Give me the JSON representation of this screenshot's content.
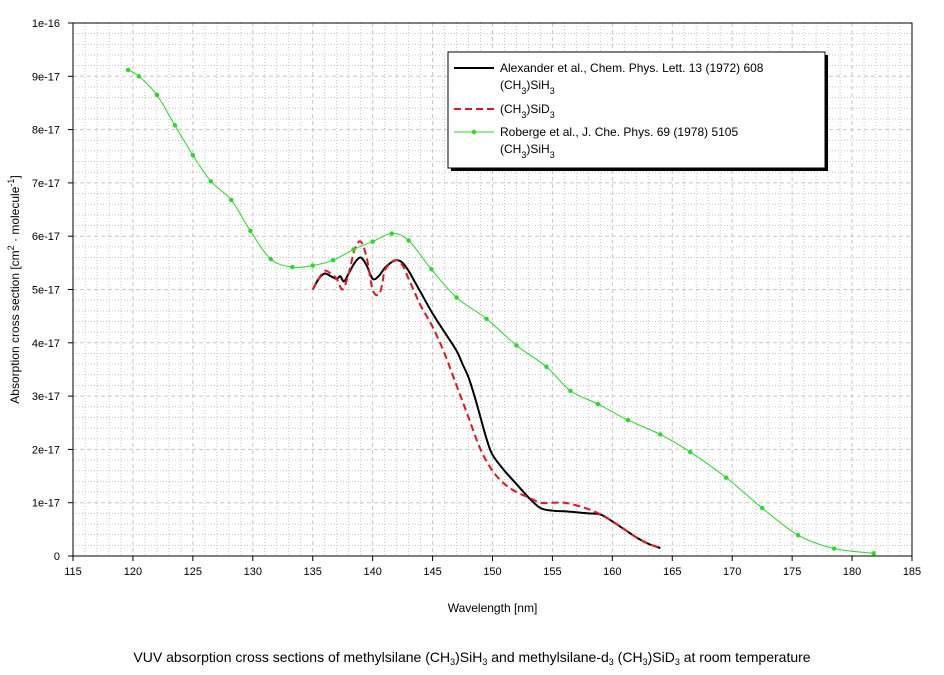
{
  "chart_data": {
    "type": "line",
    "xlabel": "Wavelength [nm]",
    "ylabel_parts": [
      "Absorption cross section [cm",
      "2",
      " · molecule",
      "-1",
      "]"
    ],
    "xlim": [
      115,
      185
    ],
    "ylim": [
      0,
      1e-16
    ],
    "x_ticks": [
      "115",
      "120",
      "125",
      "130",
      "135",
      "140",
      "145",
      "150",
      "155",
      "160",
      "165",
      "170",
      "175",
      "180",
      "185"
    ],
    "y_ticks": [
      "0",
      "1e-17",
      "2e-17",
      "3e-17",
      "4e-17",
      "5e-17",
      "6e-17",
      "7e-17",
      "8e-17",
      "9e-17",
      "1e-16"
    ],
    "grid": true,
    "legend_position": "top-right",
    "series": [
      {
        "legend_parts": [
          [
            "Alexander et al., Chem. Phys. Lett. 13 (1972) 608"
          ],
          [
            "(CH",
            "3",
            ")SiH",
            "3"
          ]
        ],
        "color": "#000000",
        "style": "solid",
        "markers": false,
        "x": [
          135.0,
          135.5,
          136.0,
          136.5,
          137.0,
          137.3,
          137.6,
          138.0,
          138.5,
          139.0,
          139.5,
          140.0,
          140.5,
          141.0,
          141.5,
          142.0,
          142.5,
          143.0,
          143.5,
          144.0,
          145.0,
          146.0,
          147.0,
          147.5,
          148.0,
          148.5,
          149.0,
          149.5,
          150.0,
          151.0,
          152.0,
          153.0,
          154.0,
          155.0,
          156.0,
          157.0,
          158.0,
          159.0,
          160.0,
          161.0,
          162.0,
          163.0,
          164.0
        ],
        "y": [
          5e-17,
          5.2e-17,
          5.3e-17,
          5.25e-17,
          5.2e-17,
          5.25e-17,
          5.15e-17,
          5.3e-17,
          5.5e-17,
          5.6e-17,
          5.45e-17,
          5.2e-17,
          5.25e-17,
          5.4e-17,
          5.5e-17,
          5.55e-17,
          5.5e-17,
          5.35e-17,
          5.15e-17,
          4.95e-17,
          4.55e-17,
          4.2e-17,
          3.85e-17,
          3.6e-17,
          3.35e-17,
          3e-17,
          2.6e-17,
          2.2e-17,
          1.9e-17,
          1.6e-17,
          1.35e-17,
          1.1e-17,
          9e-18,
          8.5e-18,
          8.4e-18,
          8.2e-18,
          8e-18,
          7.8e-18,
          6.5e-18,
          5e-18,
          3.5e-18,
          2.3e-18,
          1.5e-18
        ]
      },
      {
        "legend_parts": [
          [
            "(CH",
            "3",
            ")SiD",
            "3"
          ]
        ],
        "color": "#e8141c",
        "style": "dashed",
        "markers": false,
        "x": [
          135.0,
          135.5,
          136.0,
          136.5,
          137.0,
          137.5,
          138.0,
          138.5,
          139.0,
          139.5,
          140.0,
          140.5,
          140.8,
          141.0,
          141.5,
          142.0,
          142.5,
          143.0,
          143.5,
          144.0,
          145.0,
          146.0,
          147.0,
          148.0,
          149.0,
          150.0,
          151.0,
          152.0,
          153.0,
          154.0,
          155.0,
          156.0,
          157.0,
          158.0,
          159.0,
          160.0,
          161.0,
          162.0,
          163.0,
          164.0
        ],
        "y": [
          5e-17,
          5.2e-17,
          5.35e-17,
          5.3e-17,
          5.2e-17,
          5e-17,
          5.3e-17,
          5.75e-17,
          5.9e-17,
          5.6e-17,
          5e-17,
          4.9e-17,
          5.1e-17,
          5.35e-17,
          5.5e-17,
          5.55e-17,
          5.45e-17,
          5.2e-17,
          4.95e-17,
          4.7e-17,
          4.3e-17,
          3.8e-17,
          3.2e-17,
          2.6e-17,
          2e-17,
          1.6e-17,
          1.35e-17,
          1.2e-17,
          1.1e-17,
          1e-17,
          1e-17,
          1e-17,
          9.5e-18,
          8.8e-18,
          7.8e-18,
          6.5e-18,
          5e-18,
          3.5e-18,
          2.3e-18,
          1.5e-18
        ]
      },
      {
        "legend_parts": [
          [
            "Roberge et al., J. Che. Phys. 69 (1978) 5105"
          ],
          [
            "(CH",
            "3",
            ")SiH",
            "3"
          ]
        ],
        "color": "#22dd22",
        "style": "solid",
        "markers": true,
        "x": [
          119.6,
          120.5,
          122.0,
          123.5,
          125.0,
          126.5,
          128.2,
          129.8,
          131.5,
          133.3,
          135.0,
          136.7,
          138.4,
          140.0,
          141.6,
          143.0,
          144.9,
          147.0,
          149.5,
          152.0,
          154.5,
          156.5,
          158.8,
          161.3,
          164.0,
          166.5,
          169.5,
          172.5,
          175.5,
          178.5,
          181.8
        ],
        "y": [
          9.12e-17,
          9e-17,
          8.65e-17,
          8.08e-17,
          7.52e-17,
          7.03e-17,
          6.68e-17,
          6.1e-17,
          5.57e-17,
          5.42e-17,
          5.45e-17,
          5.55e-17,
          5.75e-17,
          5.9e-17,
          6.05e-17,
          5.92e-17,
          5.38e-17,
          4.85e-17,
          4.45e-17,
          3.95e-17,
          3.55e-17,
          3.1e-17,
          2.85e-17,
          2.55e-17,
          2.28e-17,
          1.95e-17,
          1.47e-17,
          9e-18,
          3.9e-18,
          1.4e-18,
          5e-19
        ]
      }
    ]
  },
  "caption_parts": [
    "VUV absorption cross sections of methylsilane (CH",
    "3",
    ")SiH",
    "3",
    " and methylsilane-d",
    "3",
    " (CH",
    "3",
    ")SiD",
    "3",
    " at room temperature"
  ]
}
